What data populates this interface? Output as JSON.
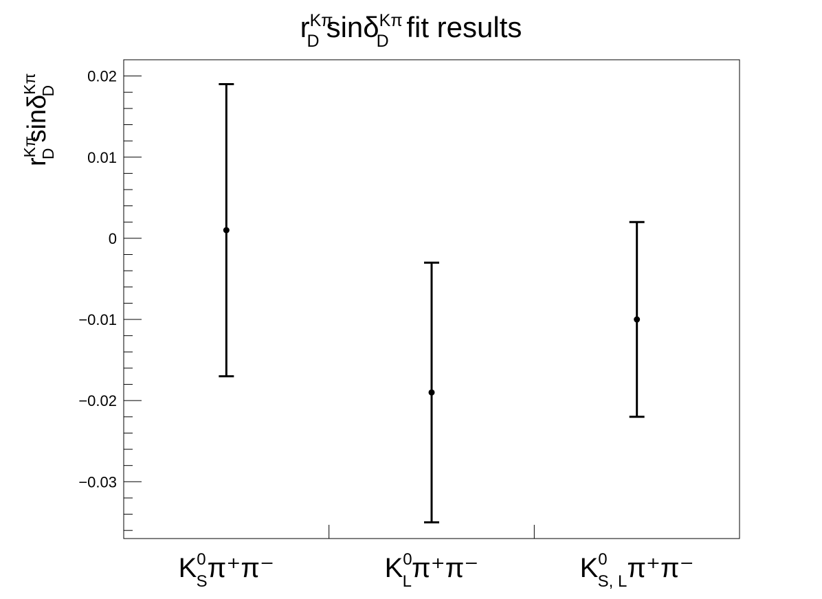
{
  "chart_data": {
    "type": "scatter",
    "title": {
      "base": "r",
      "sub1": "D",
      "sup1": "Kπ",
      "mid": "sinδ",
      "sub2": "D",
      "sup2": "Kπ",
      "tail": " fit results"
    },
    "ylabel": {
      "base": "r",
      "sub1": "D",
      "sup1": "Kπ",
      "mid": "sinδ",
      "sub2": "D",
      "sup2": "Kπ"
    },
    "categories": [
      {
        "base": "K",
        "sup": "0",
        "sub": "S",
        "tail": "π⁺π⁻"
      },
      {
        "base": "K",
        "sup": "0",
        "sub": "L",
        "tail": "π⁺π⁻"
      },
      {
        "base": "K",
        "sup": "0",
        "sub": "S, L",
        "tail": "π⁺π⁻"
      }
    ],
    "values": [
      0.001,
      -0.019,
      -0.01
    ],
    "err_low": [
      -0.017,
      -0.035,
      -0.022
    ],
    "err_high": [
      0.019,
      -0.003,
      0.002
    ],
    "ylim": [
      -0.037,
      0.022
    ],
    "yticks": [
      -0.03,
      -0.02,
      -0.01,
      0,
      0.01,
      0.02
    ],
    "ytick_labels": [
      "−0.03",
      "−0.02",
      "−0.01",
      "0",
      "0.01",
      "0.02"
    ],
    "grid": false,
    "legend": "none"
  }
}
